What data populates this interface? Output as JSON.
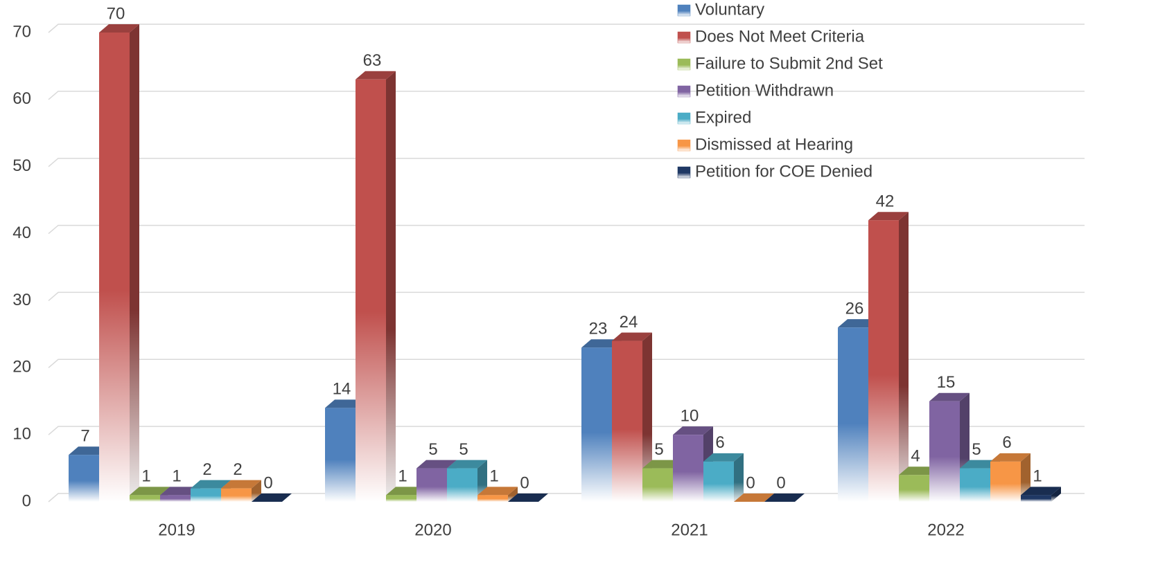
{
  "chart_data": {
    "type": "bar3d",
    "categories": [
      "2019",
      "2020",
      "2021",
      "2022"
    ],
    "series": [
      {
        "name": "Voluntary",
        "color": "#4f81bd",
        "values": [
          7,
          14,
          23,
          26
        ]
      },
      {
        "name": "Does Not Meet Criteria",
        "color": "#c0504d",
        "values": [
          70,
          63,
          24,
          42
        ]
      },
      {
        "name": "Failure to Submit 2nd Set",
        "color": "#9bbb59",
        "values": [
          1,
          1,
          5,
          4
        ]
      },
      {
        "name": "Petition Withdrawn",
        "color": "#8064a2",
        "values": [
          1,
          5,
          10,
          15
        ]
      },
      {
        "name": "Expired",
        "color": "#4bacc6",
        "values": [
          2,
          5,
          6,
          5
        ]
      },
      {
        "name": "Dismissed at Hearing",
        "color": "#f79646",
        "values": [
          2,
          1,
          0,
          6
        ]
      },
      {
        "name": "Petition for COE Denied",
        "color": "#1f3864",
        "values": [
          0,
          0,
          0,
          1
        ]
      }
    ],
    "ylim": [
      0,
      70
    ],
    "yticks": [
      0,
      10,
      20,
      30,
      40,
      50,
      60,
      70
    ],
    "grid": true,
    "legend": "top-right"
  }
}
